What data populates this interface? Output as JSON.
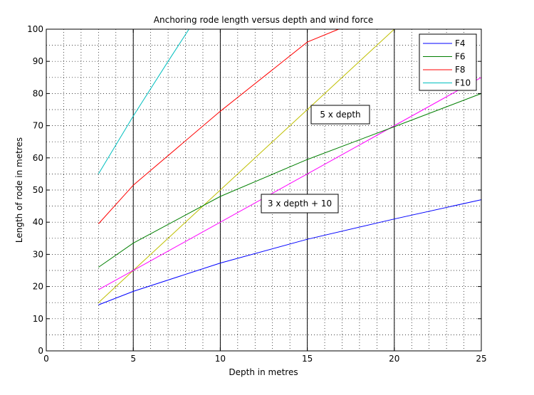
{
  "chart_data": {
    "type": "line",
    "title": "Anchoring rode length versus depth and wind force",
    "xlabel": "Depth in metres",
    "ylabel": "Length of rode in metres",
    "xlim": [
      0,
      25
    ],
    "ylim": [
      0,
      100
    ],
    "xticks": [
      0,
      5,
      10,
      15,
      20,
      25
    ],
    "yticks": [
      0,
      10,
      20,
      30,
      40,
      50,
      60,
      70,
      80,
      90,
      100
    ],
    "grid": "dotted",
    "legend_position": "top-right",
    "series": [
      {
        "name": "F4",
        "color": "#0000ff",
        "x": [
          3,
          5,
          10,
          15,
          20,
          25
        ],
        "y": [
          14.3,
          18.5,
          27.3,
          34.7,
          41,
          47
        ]
      },
      {
        "name": "F6",
        "color": "#007f00",
        "x": [
          3,
          5,
          10,
          15,
          20,
          25
        ],
        "y": [
          26,
          33.5,
          48,
          59.5,
          69.7,
          80
        ]
      },
      {
        "name": "F8",
        "color": "#ff0000",
        "x": [
          3,
          5,
          10,
          15,
          16.8
        ],
        "y": [
          39.5,
          51.5,
          74.5,
          96,
          100
        ]
      },
      {
        "name": "F10",
        "color": "#00bfbf",
        "x": [
          3,
          5,
          7,
          8.2
        ],
        "y": [
          55,
          73,
          90,
          100
        ]
      }
    ],
    "reference_lines": [
      {
        "label": "5 x depth",
        "color": "#bfbf00",
        "x": [
          3,
          20
        ],
        "y": [
          15,
          100
        ]
      },
      {
        "label": "3 x depth + 10",
        "color": "#ff00ff",
        "x": [
          3,
          25
        ],
        "y": [
          19,
          85
        ]
      }
    ],
    "vertical_lines_x": [
      5,
      10,
      15,
      20
    ]
  }
}
